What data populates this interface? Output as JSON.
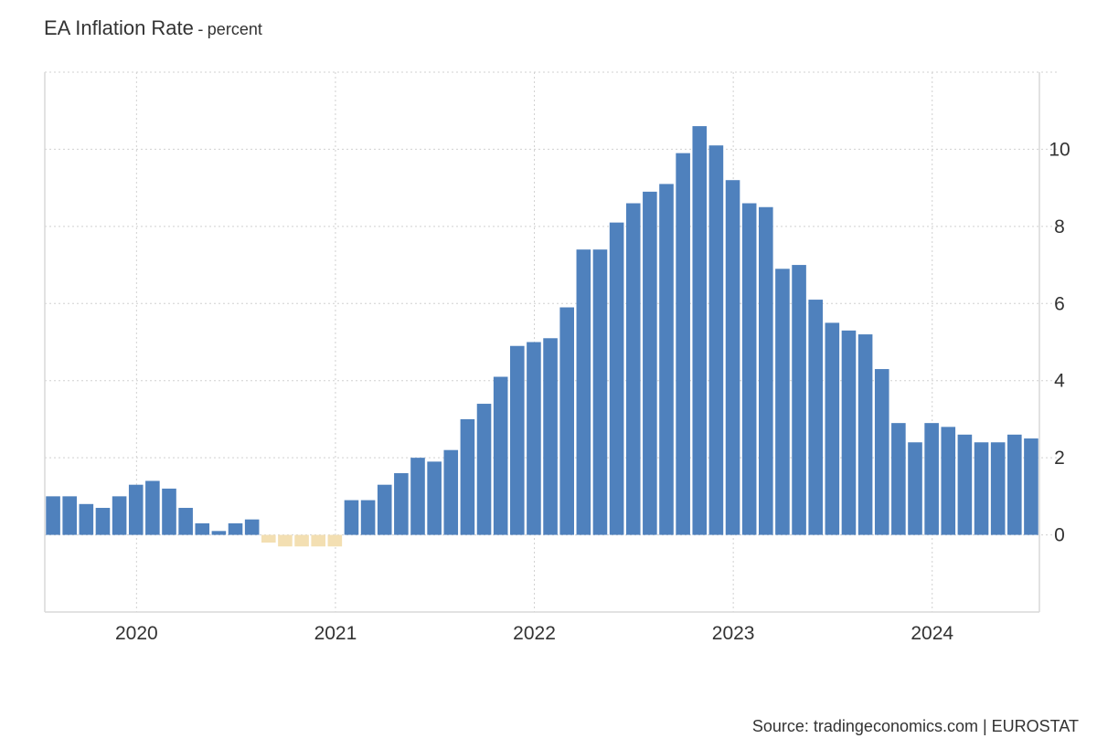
{
  "title": "EA Inflation Rate",
  "title_separator": "-",
  "unit": "percent",
  "source": "Source: tradingeconomics.com | EUROSTAT",
  "colors": {
    "positive": "#4f81bd",
    "negative": "#f3dfb2",
    "grid": "#d0d0d0",
    "axis": "#d9d9d9",
    "text": "#333333"
  },
  "chart_data": {
    "type": "bar",
    "title": "EA Inflation Rate",
    "ylabel": "percent",
    "x_ticks": [
      "2020",
      "2021",
      "2022",
      "2023",
      "2024"
    ],
    "y_ticks": [
      0,
      2,
      4,
      6,
      8,
      10
    ],
    "ylim": [
      -2,
      12
    ],
    "xlim": [
      "2019-07-15",
      "2024-07-15"
    ],
    "grid": true,
    "y_axis_side": "right",
    "x": [
      "2019-07",
      "2019-08",
      "2019-09",
      "2019-10",
      "2019-11",
      "2019-12",
      "2020-01",
      "2020-02",
      "2020-03",
      "2020-04",
      "2020-05",
      "2020-06",
      "2020-07",
      "2020-08",
      "2020-09",
      "2020-10",
      "2020-11",
      "2020-12",
      "2021-01",
      "2021-02",
      "2021-03",
      "2021-04",
      "2021-05",
      "2021-06",
      "2021-07",
      "2021-08",
      "2021-09",
      "2021-10",
      "2021-11",
      "2021-12",
      "2022-01",
      "2022-02",
      "2022-03",
      "2022-04",
      "2022-05",
      "2022-06",
      "2022-07",
      "2022-08",
      "2022-09",
      "2022-10",
      "2022-11",
      "2022-12",
      "2023-01",
      "2023-02",
      "2023-03",
      "2023-04",
      "2023-05",
      "2023-06",
      "2023-07",
      "2023-08",
      "2023-09",
      "2023-10",
      "2023-11",
      "2023-12",
      "2024-01",
      "2024-02",
      "2024-03",
      "2024-04",
      "2024-05",
      "2024-06"
    ],
    "values": [
      1.0,
      1.0,
      0.8,
      0.7,
      1.0,
      1.3,
      1.4,
      1.2,
      0.7,
      0.3,
      0.1,
      0.3,
      0.4,
      -0.2,
      -0.3,
      -0.3,
      -0.3,
      -0.3,
      0.9,
      0.9,
      1.3,
      1.6,
      2.0,
      1.9,
      2.2,
      3.0,
      3.4,
      4.1,
      4.9,
      5.0,
      5.1,
      5.9,
      7.4,
      7.4,
      8.1,
      8.6,
      8.9,
      9.1,
      9.9,
      10.6,
      10.1,
      9.2,
      8.6,
      8.5,
      6.9,
      7.0,
      6.1,
      5.5,
      5.3,
      5.2,
      4.3,
      2.9,
      2.4,
      2.9,
      2.8,
      2.6,
      2.4,
      2.4,
      2.6,
      2.5
    ]
  }
}
